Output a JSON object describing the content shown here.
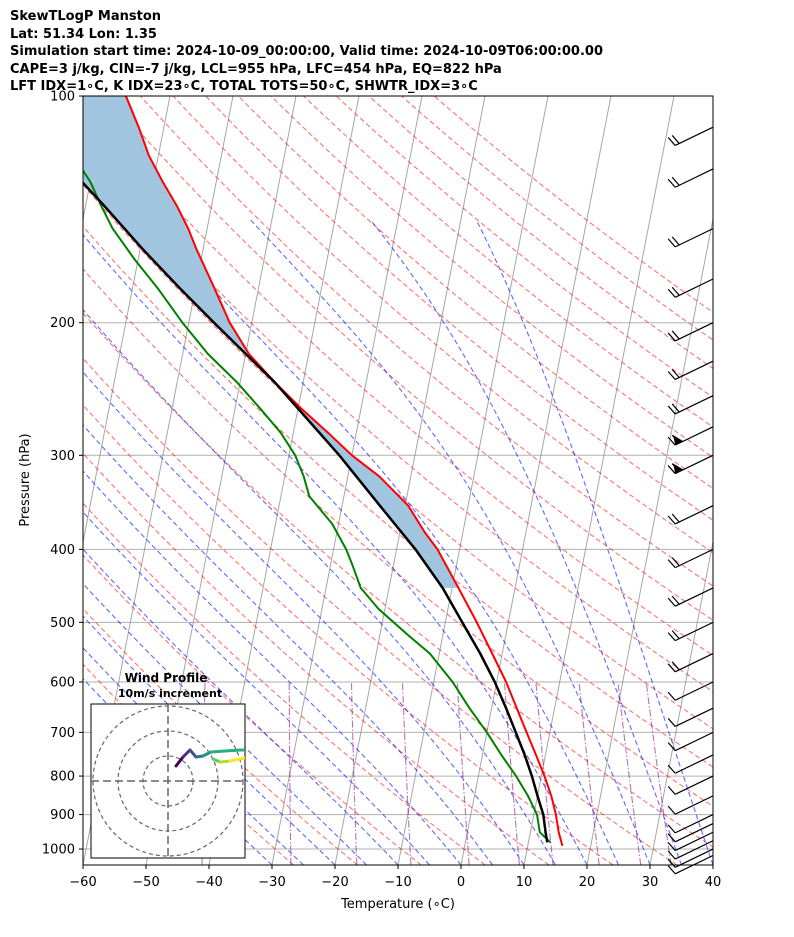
{
  "chart_data": {
    "type": "line",
    "title_lines": [
      "SkewTLogP Manston",
      "Lat: 51.34   Lon: 1.35",
      "Simulation start time: 2024-10-09_00:00:00, Valid time: 2024-10-09T06:00:00.00",
      "CAPE=3 j/kg, CIN=-7 j/kg, LCL=955 hPa, LFC=454 hPa, EQ=822 hPa",
      "LFT IDX=1∘C, K IDX=23∘C, TOTAL TOTS=50∘C, SHWTR_IDX=3∘C"
    ],
    "xlabel": "Temperature (∘C)",
    "ylabel": "Pressure (hPa)",
    "xlim": [
      -60,
      40
    ],
    "ylim": [
      1050,
      100
    ],
    "y_scale": "log",
    "x_ticks": [
      -60,
      -50,
      -40,
      -30,
      -20,
      -10,
      0,
      10,
      20,
      30,
      40
    ],
    "y_ticks": [
      1000,
      900,
      800,
      700,
      600,
      500,
      400,
      300,
      200,
      100
    ],
    "grid": true,
    "series": [],
    "temperature_profile": [
      {
        "p": 990,
        "t": 15.5
      },
      {
        "p": 950,
        "t": 14.5
      },
      {
        "p": 900,
        "t": 13.5
      },
      {
        "p": 850,
        "t": 12.2
      },
      {
        "p": 800,
        "t": 10.5
      },
      {
        "p": 750,
        "t": 8.5
      },
      {
        "p": 700,
        "t": 6.3
      },
      {
        "p": 650,
        "t": 4.0
      },
      {
        "p": 600,
        "t": 1.5
      },
      {
        "p": 550,
        "t": -1.6
      },
      {
        "p": 500,
        "t": -5.0
      },
      {
        "p": 450,
        "t": -9.0
      },
      {
        "p": 400,
        "t": -13.5
      },
      {
        "p": 380,
        "t": -16.0
      },
      {
        "p": 350,
        "t": -19.5
      },
      {
        "p": 320,
        "t": -25.0
      },
      {
        "p": 300,
        "t": -30.0
      },
      {
        "p": 280,
        "t": -34.5
      },
      {
        "p": 260,
        "t": -39.5
      },
      {
        "p": 240,
        "t": -44.5
      },
      {
        "p": 220,
        "t": -49.5
      },
      {
        "p": 200,
        "t": -53.5
      },
      {
        "p": 180,
        "t": -57.0
      },
      {
        "p": 160,
        "t": -61.0
      },
      {
        "p": 150,
        "t": -63.0
      },
      {
        "p": 140,
        "t": -65.5
      },
      {
        "p": 130,
        "t": -68.5
      },
      {
        "p": 120,
        "t": -71.5
      },
      {
        "p": 110,
        "t": -74.0
      },
      {
        "p": 100,
        "t": -77.0
      }
    ],
    "dewpoint_profile": [
      {
        "p": 980,
        "t": 13.5
      },
      {
        "p": 950,
        "t": 11.5
      },
      {
        "p": 900,
        "t": 10.5
      },
      {
        "p": 850,
        "t": 8.5
      },
      {
        "p": 800,
        "t": 6.0
      },
      {
        "p": 750,
        "t": 3.0
      },
      {
        "p": 700,
        "t": 0.0
      },
      {
        "p": 650,
        "t": -3.5
      },
      {
        "p": 600,
        "t": -7.0
      },
      {
        "p": 550,
        "t": -11.5
      },
      {
        "p": 520,
        "t": -15.5
      },
      {
        "p": 480,
        "t": -21.0
      },
      {
        "p": 450,
        "t": -24.5
      },
      {
        "p": 420,
        "t": -26.5
      },
      {
        "p": 400,
        "t": -28.0
      },
      {
        "p": 370,
        "t": -31.0
      },
      {
        "p": 340,
        "t": -35.5
      },
      {
        "p": 320,
        "t": -37.0
      },
      {
        "p": 300,
        "t": -39.0
      },
      {
        "p": 280,
        "t": -42.0
      },
      {
        "p": 260,
        "t": -46.0
      },
      {
        "p": 240,
        "t": -50.5
      },
      {
        "p": 220,
        "t": -56.0
      },
      {
        "p": 200,
        "t": -61.0
      },
      {
        "p": 180,
        "t": -66.0
      },
      {
        "p": 165,
        "t": -70.5
      },
      {
        "p": 150,
        "t": -75.0
      },
      {
        "p": 140,
        "t": -77.5
      },
      {
        "p": 130,
        "t": -80.0
      },
      {
        "p": 120,
        "t": -83.5
      },
      {
        "p": 110,
        "t": -88.0
      },
      {
        "p": 100,
        "t": -93.5
      }
    ],
    "parcel_profile": [
      {
        "p": 980,
        "t": 13.0
      },
      {
        "p": 955,
        "t": 12.5
      },
      {
        "p": 900,
        "t": 11.5
      },
      {
        "p": 850,
        "t": 10.0
      },
      {
        "p": 800,
        "t": 8.5
      },
      {
        "p": 750,
        "t": 6.7
      },
      {
        "p": 700,
        "t": 4.6
      },
      {
        "p": 650,
        "t": 2.3
      },
      {
        "p": 600,
        "t": -0.3
      },
      {
        "p": 550,
        "t": -3.5
      },
      {
        "p": 500,
        "t": -7.3
      },
      {
        "p": 450,
        "t": -11.5
      },
      {
        "p": 400,
        "t": -17.0
      },
      {
        "p": 350,
        "t": -24.0
      },
      {
        "p": 300,
        "t": -32.0
      },
      {
        "p": 260,
        "t": -40.0
      },
      {
        "p": 240,
        "t": -44.5
      },
      {
        "p": 220,
        "t": -50.0
      },
      {
        "p": 200,
        "t": -56.0
      },
      {
        "p": 180,
        "t": -62.5
      },
      {
        "p": 160,
        "t": -69.5
      },
      {
        "p": 140,
        "t": -77.0
      },
      {
        "p": 120,
        "t": -86.0
      },
      {
        "p": 110,
        "t": -91.0
      },
      {
        "p": 100,
        "t": -96.5
      }
    ],
    "cape_shading": {
      "color": "#a1c4df"
    },
    "wind_barb_levels": [
      1020,
      1000,
      975,
      950,
      925,
      900,
      850,
      800,
      750,
      700,
      650,
      600,
      550,
      500,
      450,
      400,
      350,
      300,
      275,
      250,
      225,
      200,
      175,
      150,
      125,
      110
    ],
    "inset": {
      "title": "Wind Profile",
      "subtitle": "10m/s increment",
      "rings": [
        10,
        20,
        30
      ],
      "colormap": "viridis"
    },
    "colors": {
      "temperature": "#ff0000",
      "dewpoint": "#008000",
      "parcel": "#000000",
      "dry_adiabat": "#ff0000",
      "moist_adiabat": "#0000ff",
      "mixing_ratio": "#800080",
      "isotherm": "#808080",
      "cape_fill": "#a1c4df"
    }
  }
}
